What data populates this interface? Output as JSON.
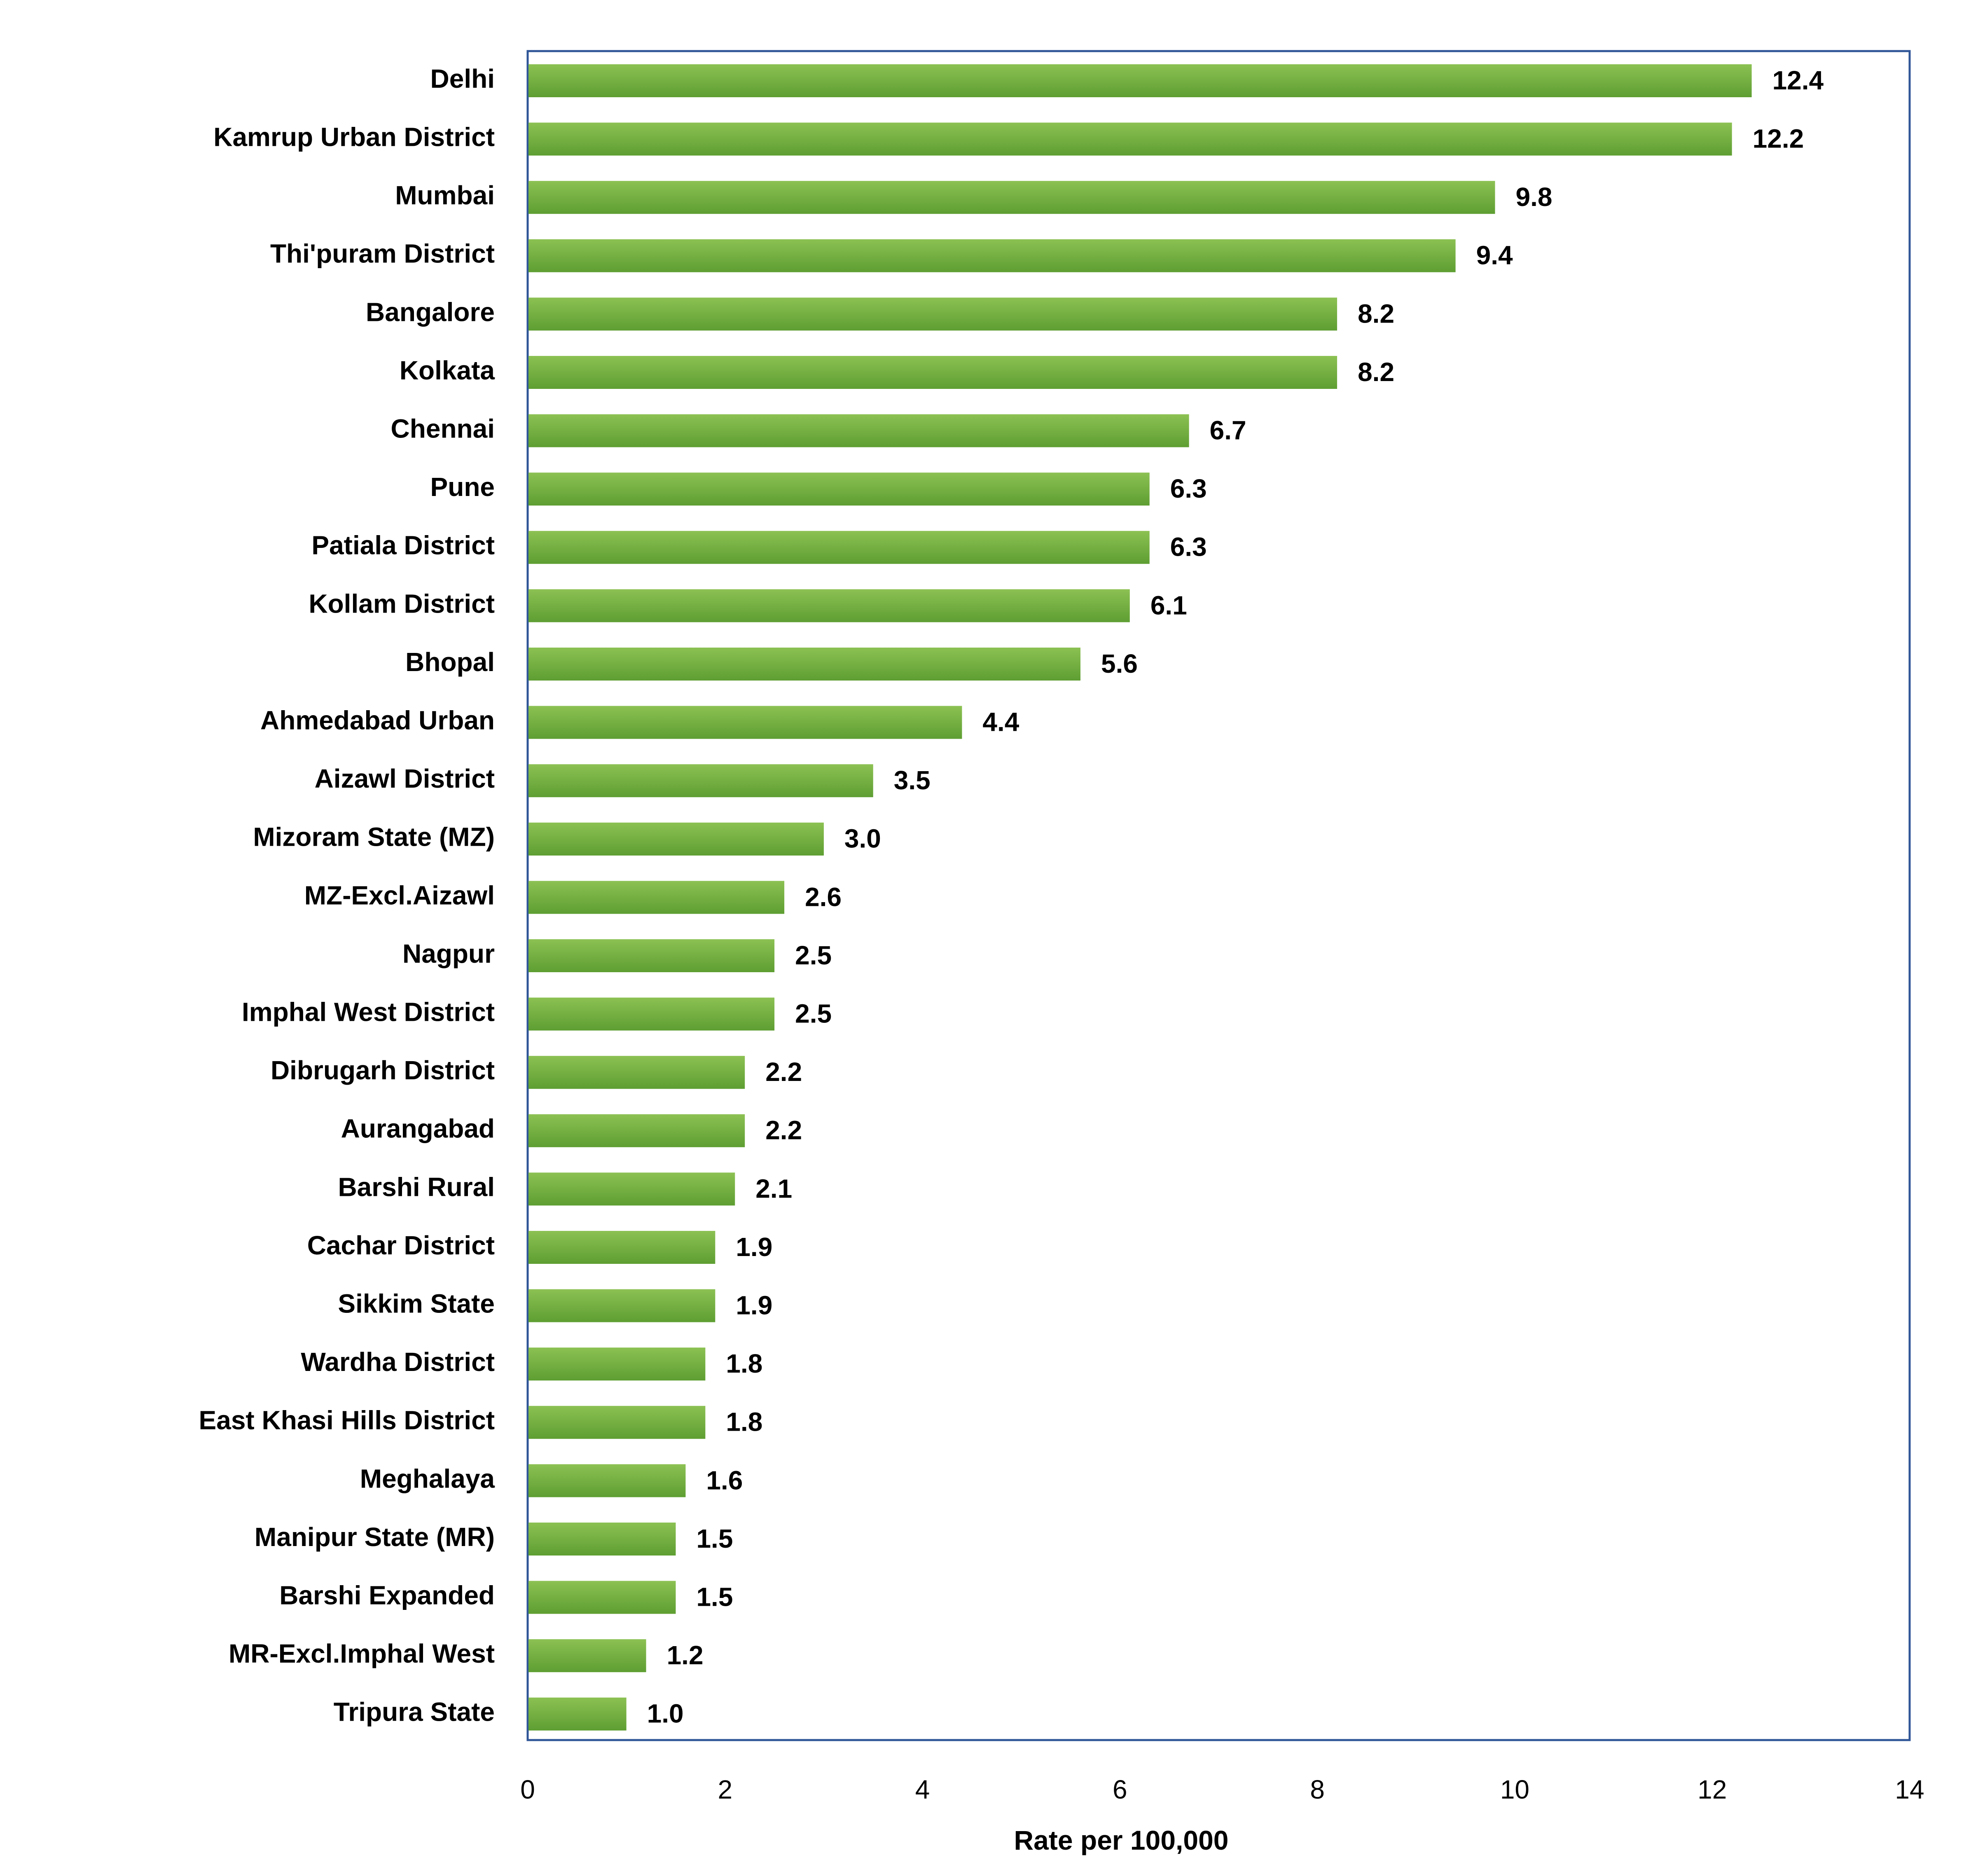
{
  "chart_data": {
    "type": "bar",
    "orientation": "horizontal",
    "title": "",
    "xlabel": "Rate per 100,000",
    "ylabel": "",
    "xlim": [
      0,
      14
    ],
    "xticks": [
      "0",
      "2",
      "4",
      "6",
      "8",
      "10",
      "12",
      "14"
    ],
    "grid": false,
    "legend": "none",
    "categories": [
      "Delhi",
      "Kamrup Urban District",
      "Mumbai",
      "Thi'puram District",
      "Bangalore",
      "Kolkata",
      "Chennai",
      "Pune",
      "Patiala District",
      "Kollam District",
      "Bhopal",
      "Ahmedabad Urban",
      "Aizawl District",
      "Mizoram State (MZ)",
      "MZ-Excl.Aizawl",
      "Nagpur",
      "Imphal West District",
      "Dibrugarh District",
      "Aurangabad",
      "Barshi Rural",
      "Cachar District",
      "Sikkim State",
      "Wardha District",
      "East Khasi Hills District",
      "Meghalaya",
      "Manipur State (MR)",
      "Barshi Expanded",
      "MR-Excl.Imphal West",
      "Tripura State"
    ],
    "values": [
      12.4,
      12.2,
      9.8,
      9.4,
      8.2,
      8.2,
      6.7,
      6.3,
      6.3,
      6.1,
      5.6,
      4.4,
      3.5,
      3.0,
      2.6,
      2.5,
      2.5,
      2.2,
      2.2,
      2.1,
      1.9,
      1.9,
      1.8,
      1.8,
      1.6,
      1.5,
      1.5,
      1.2,
      1.0
    ],
    "value_labels": [
      "12.4",
      "12.2",
      "9.8",
      "9.4",
      "8.2",
      "8.2",
      "6.7",
      "6.3",
      "6.3",
      "6.1",
      "5.6",
      "4.4",
      "3.5",
      "3.0",
      "2.6",
      "2.5",
      "2.5",
      "2.2",
      "2.2",
      "2.1",
      "1.9",
      "1.9",
      "1.8",
      "1.8",
      "1.6",
      "1.5",
      "1.5",
      "1.2",
      "1.0"
    ],
    "colors": {
      "bar_top": "#8cc153",
      "bar_bottom": "#5e9e32",
      "plot_border": "#2f5597",
      "axis_line": "#bfbfbf",
      "text": "#000000"
    }
  }
}
